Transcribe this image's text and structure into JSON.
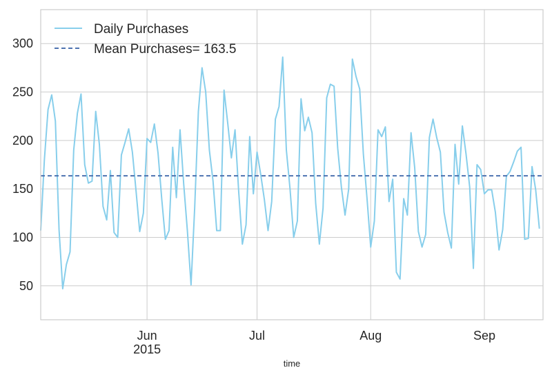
{
  "chart_data": {
    "type": "line",
    "xlabel": "time",
    "ylabel": "",
    "x_type": "date",
    "xlim": [
      "2015-05-03",
      "2015-09-17"
    ],
    "ylim": [
      15,
      335
    ],
    "yticks": [
      50,
      100,
      150,
      200,
      250,
      300
    ],
    "xticks": [
      {
        "date": "2015-06-01",
        "label": "Jun",
        "sublabel": "2015"
      },
      {
        "date": "2015-07-01",
        "label": "Jul",
        "sublabel": ""
      },
      {
        "date": "2015-08-01",
        "label": "Aug",
        "sublabel": ""
      },
      {
        "date": "2015-09-01",
        "label": "Sep",
        "sublabel": ""
      }
    ],
    "grid": true,
    "legend_position": "top-left",
    "series": [
      {
        "name": "Daily Purchases",
        "color": "#87ceeb",
        "style": "solid",
        "start_date": "2015-05-03",
        "values": [
          107,
          180,
          232,
          247,
          220,
          108,
          47,
          72,
          85,
          190,
          228,
          248,
          175,
          156,
          158,
          230,
          196,
          132,
          118,
          169,
          105,
          100,
          185,
          198,
          212,
          188,
          148,
          106,
          125,
          202,
          198,
          217,
          187,
          140,
          98,
          107,
          193,
          141,
          211,
          155,
          107,
          51,
          131,
          230,
          275,
          250,
          190,
          158,
          107,
          107,
          252,
          218,
          182,
          211,
          147,
          93,
          113,
          204,
          145,
          188,
          165,
          139,
          107,
          137,
          222,
          235,
          286,
          190,
          150,
          100,
          117,
          243,
          210,
          224,
          208,
          135,
          93,
          130,
          244,
          258,
          256,
          192,
          152,
          123,
          150,
          284,
          266,
          253,
          186,
          140,
          90,
          117,
          211,
          204,
          214,
          137,
          160,
          64,
          57,
          140,
          123,
          208,
          172,
          106,
          90,
          103,
          203,
          222,
          203,
          188,
          126,
          105,
          89,
          196,
          155,
          215,
          186,
          152,
          68,
          175,
          170,
          145,
          149,
          149,
          126,
          87,
          108,
          163,
          168,
          178,
          189,
          193,
          98,
          99,
          173,
          149,
          109
        ]
      },
      {
        "name": "Mean Purchases= 163.5",
        "color": "#4c72b0",
        "style": "dashed",
        "value": 163.5
      }
    ]
  }
}
